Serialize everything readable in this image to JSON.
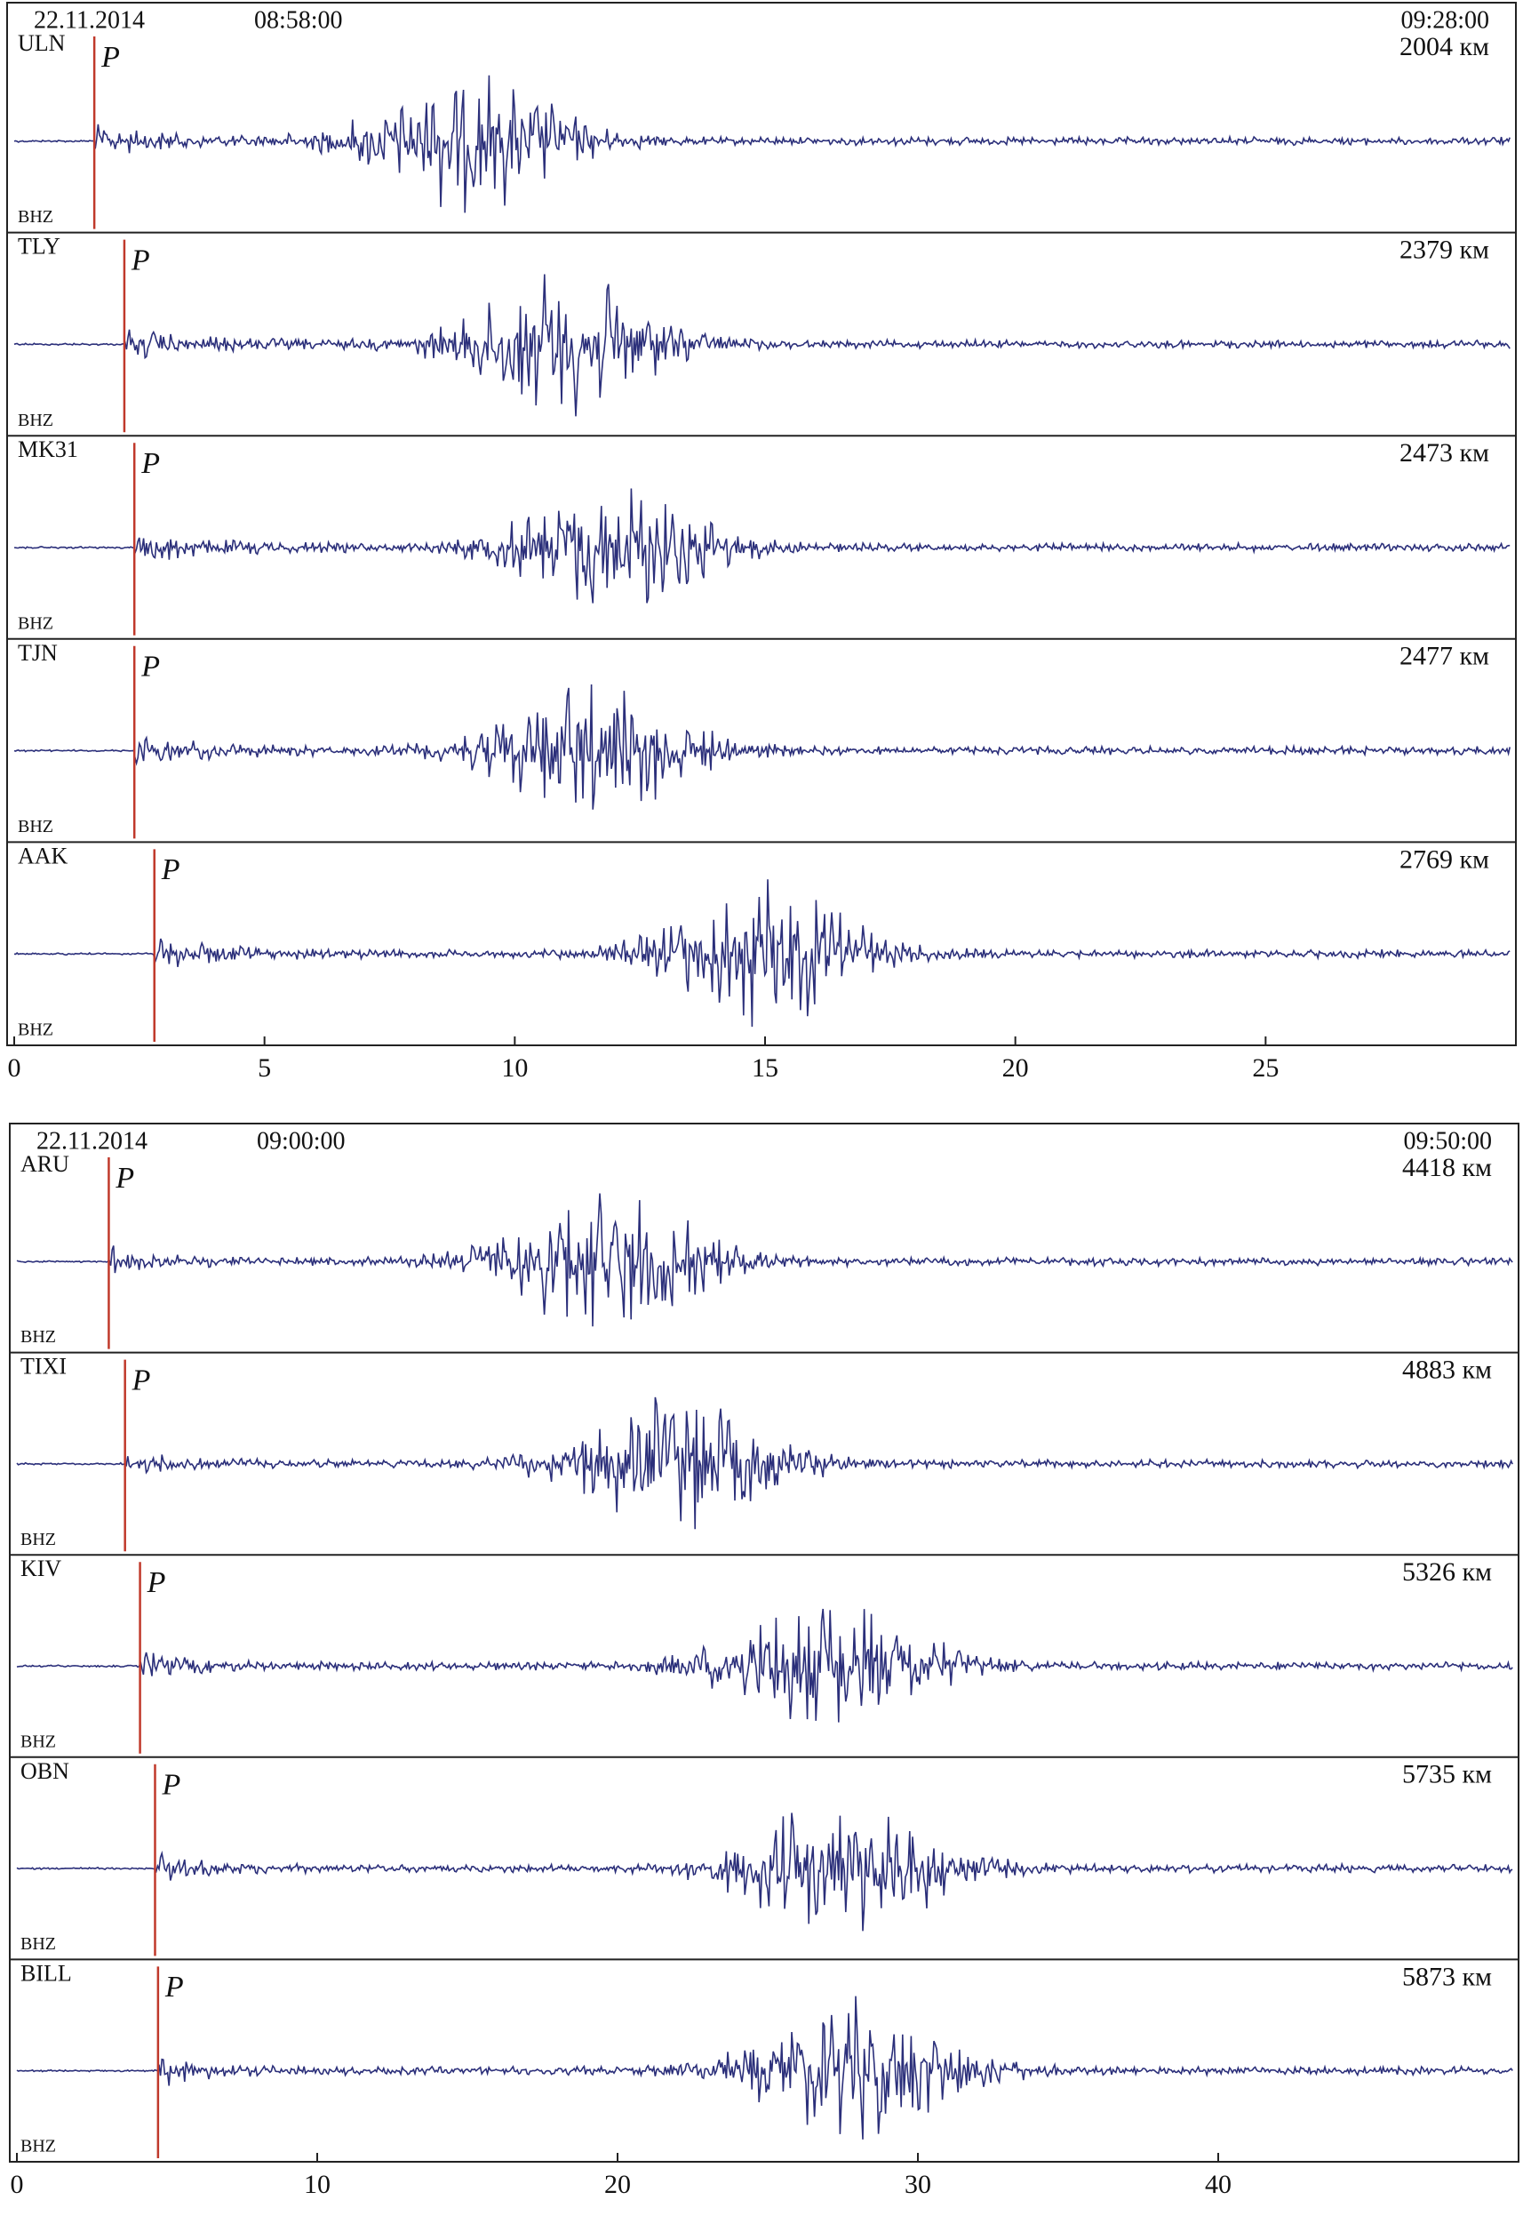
{
  "chart_data": [
    {
      "type": "seismogram",
      "date": "22.11.2014",
      "start_time": "08:58:00",
      "end_time": "09:28:00",
      "xlim": [
        0,
        30
      ],
      "xticks": [
        0,
        5,
        10,
        15,
        20,
        25
      ],
      "color": "#2b2f7a",
      "p_color": "#c0392b",
      "p_label": "P",
      "traces": [
        {
          "station": "ULN",
          "channel": "BHZ",
          "distance": "2004 км",
          "p_arrival": 1.6,
          "peak": 9.1
        },
        {
          "station": "TLY",
          "channel": "BHZ",
          "distance": "2379 км",
          "p_arrival": 2.2,
          "peak": 11
        },
        {
          "station": "MK31",
          "channel": "BHZ",
          "distance": "2473 км",
          "p_arrival": 2.4,
          "peak": 12
        },
        {
          "station": "TJN",
          "channel": "BHZ",
          "distance": "2477 км",
          "p_arrival": 2.4,
          "peak": 11.6
        },
        {
          "station": "AAK",
          "channel": "BHZ",
          "distance": "2769 км",
          "p_arrival": 2.8,
          "peak": 15
        }
      ]
    },
    {
      "type": "seismogram",
      "date": "22.11.2014",
      "start_time": "09:00:00",
      "end_time": "09:50:00",
      "xlim": [
        0,
        50
      ],
      "xticks": [
        0,
        10,
        20,
        30,
        40
      ],
      "color": "#2b2f7a",
      "p_color": "#c0392b",
      "p_label": "P",
      "traces": [
        {
          "station": "ARU",
          "channel": "BHZ",
          "distance": "4418 км",
          "p_arrival": 3.06,
          "peak": 19.5
        },
        {
          "station": "TIXI",
          "channel": "BHZ",
          "distance": "4883 км",
          "p_arrival": 3.6,
          "peak": 22
        },
        {
          "station": "KIV",
          "channel": "BHZ",
          "distance": "5326 км",
          "p_arrival": 4.1,
          "peak": 27
        },
        {
          "station": "OBN",
          "channel": "BHZ",
          "distance": "5735 км",
          "p_arrival": 4.6,
          "peak": 27.5
        },
        {
          "station": "BILL",
          "channel": "BHZ",
          "distance": "5873 км",
          "p_arrival": 4.7,
          "peak": 28
        }
      ]
    }
  ]
}
